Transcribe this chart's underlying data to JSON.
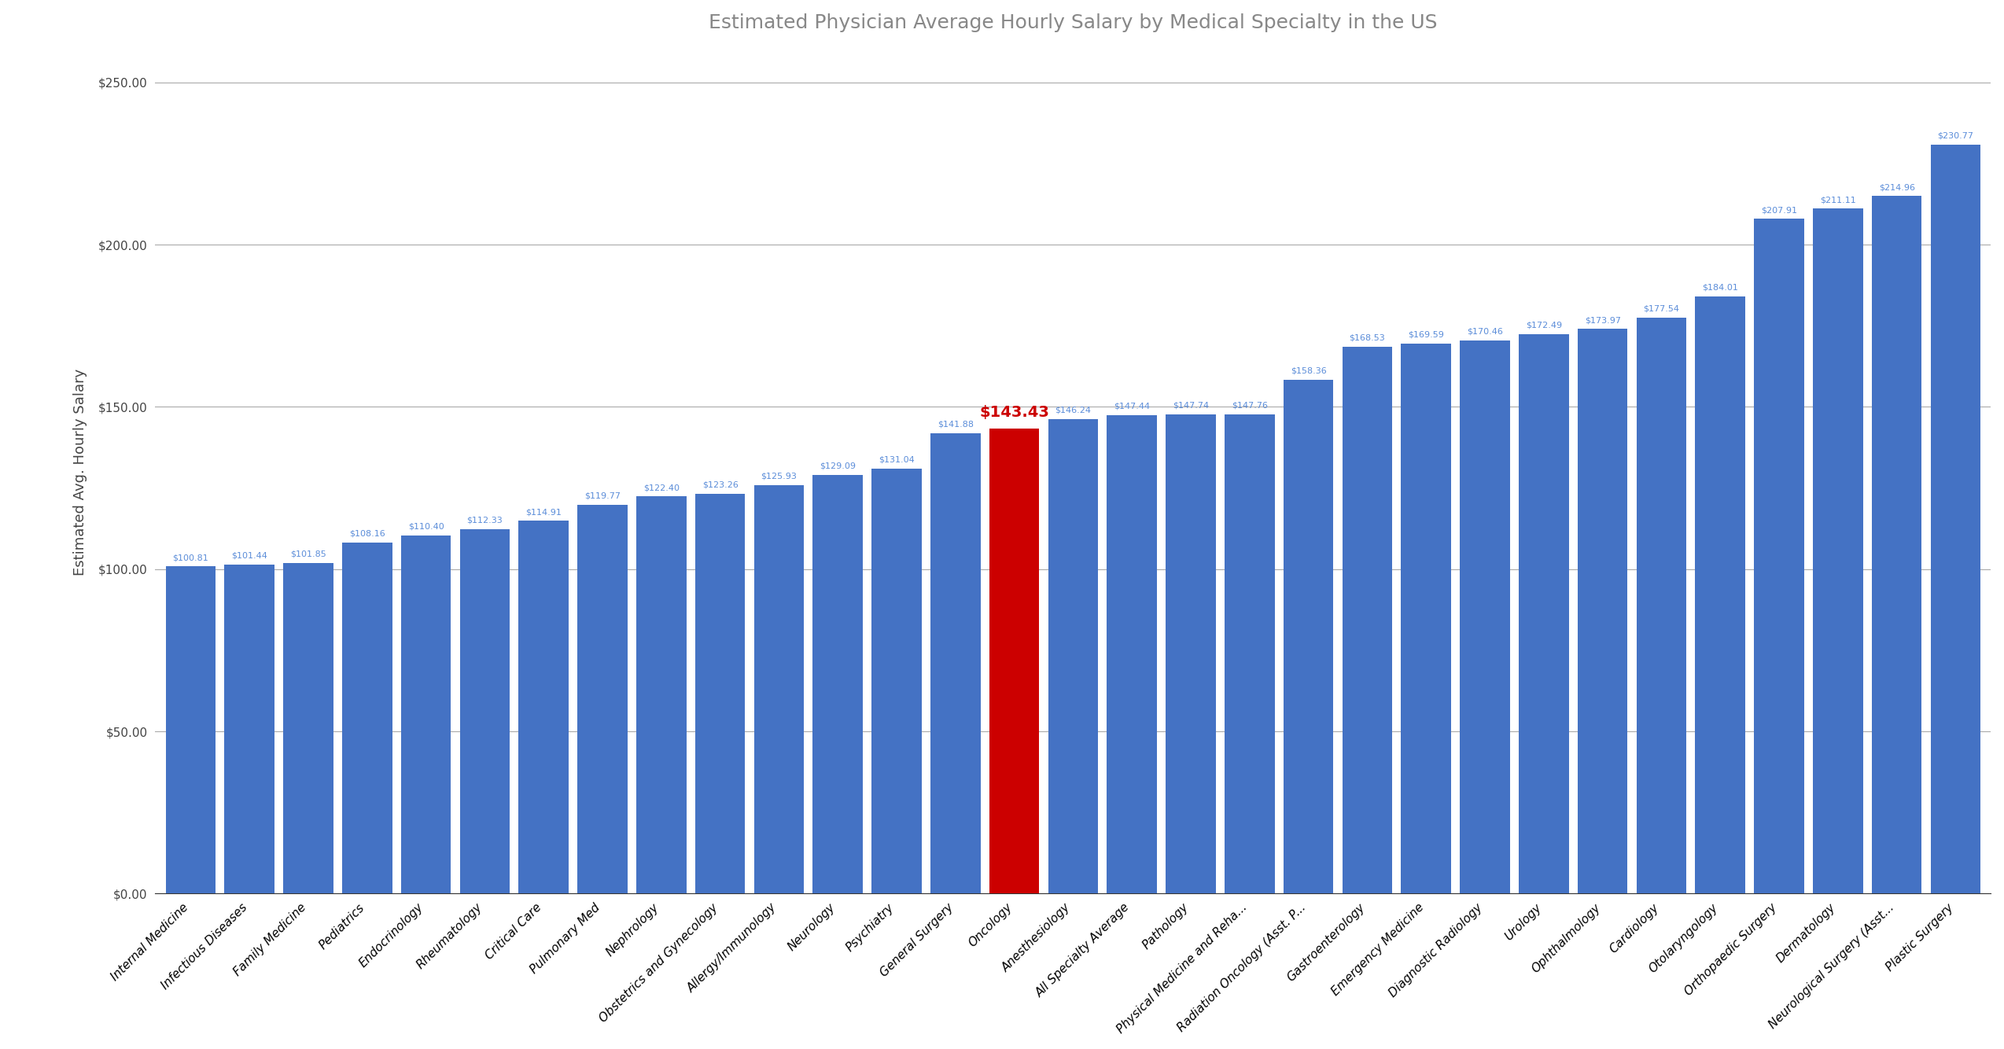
{
  "title": "Estimated Physician Average Hourly Salary by Medical Specialty in the US",
  "ylabel": "Estimated Avg. Hourly Salary",
  "categories": [
    "Internal Medicine",
    "Infectious Diseases",
    "Family Medicine",
    "Pediatrics",
    "Endocrinology",
    "Rheumatology",
    "Critical Care",
    "Pulmonary Med",
    "Nephrology",
    "Obstetrics and Gynecology",
    "Allergy/Immunology",
    "Neurology",
    "Psychiatry",
    "General Surgery",
    "Oncology",
    "Anesthesiology",
    "All Specialty Average",
    "Pathology",
    "Physical Medicine and Reha...",
    "Radiation Oncology (Asst. P...",
    "Gastroenterology",
    "Emergency Medicine",
    "Diagnostic Radiology",
    "Urology",
    "Ophthalmology",
    "Cardiology",
    "Otolaryngology",
    "Orthopaedic Surgery",
    "Dermatology",
    "Neurological Surgery (Asst...",
    "Plastic Surgery"
  ],
  "values": [
    100.81,
    101.44,
    101.85,
    108.16,
    110.4,
    112.33,
    114.91,
    119.77,
    122.4,
    123.26,
    125.93,
    129.09,
    131.04,
    141.88,
    143.43,
    146.24,
    147.44,
    147.74,
    147.76,
    158.36,
    168.53,
    169.59,
    170.46,
    172.49,
    173.97,
    177.54,
    184.01,
    207.91,
    211.11,
    214.96,
    230.77
  ],
  "highlight_index": 14,
  "bar_color": "#4472C4",
  "highlight_color": "#CC0000",
  "label_color_normal": "#5B8DD9",
  "label_color_highlight": "#CC0000",
  "background_color": "#FFFFFF",
  "ylim": [
    0,
    260
  ],
  "yticks": [
    0,
    50,
    100,
    150,
    200,
    250
  ],
  "ytick_labels": [
    "$0.00",
    "$50.00",
    "$100.00",
    "$150.00",
    "$200.00",
    "$250.00"
  ],
  "title_color": "#888888",
  "title_fontsize": 18,
  "label_fontsize": 8.0,
  "highlight_label_fontsize": 14,
  "grid_color": "#AAAAAA",
  "spine_color": "#333333",
  "bar_width": 0.85,
  "tick_label_fontsize": 11,
  "ylabel_fontsize": 13
}
